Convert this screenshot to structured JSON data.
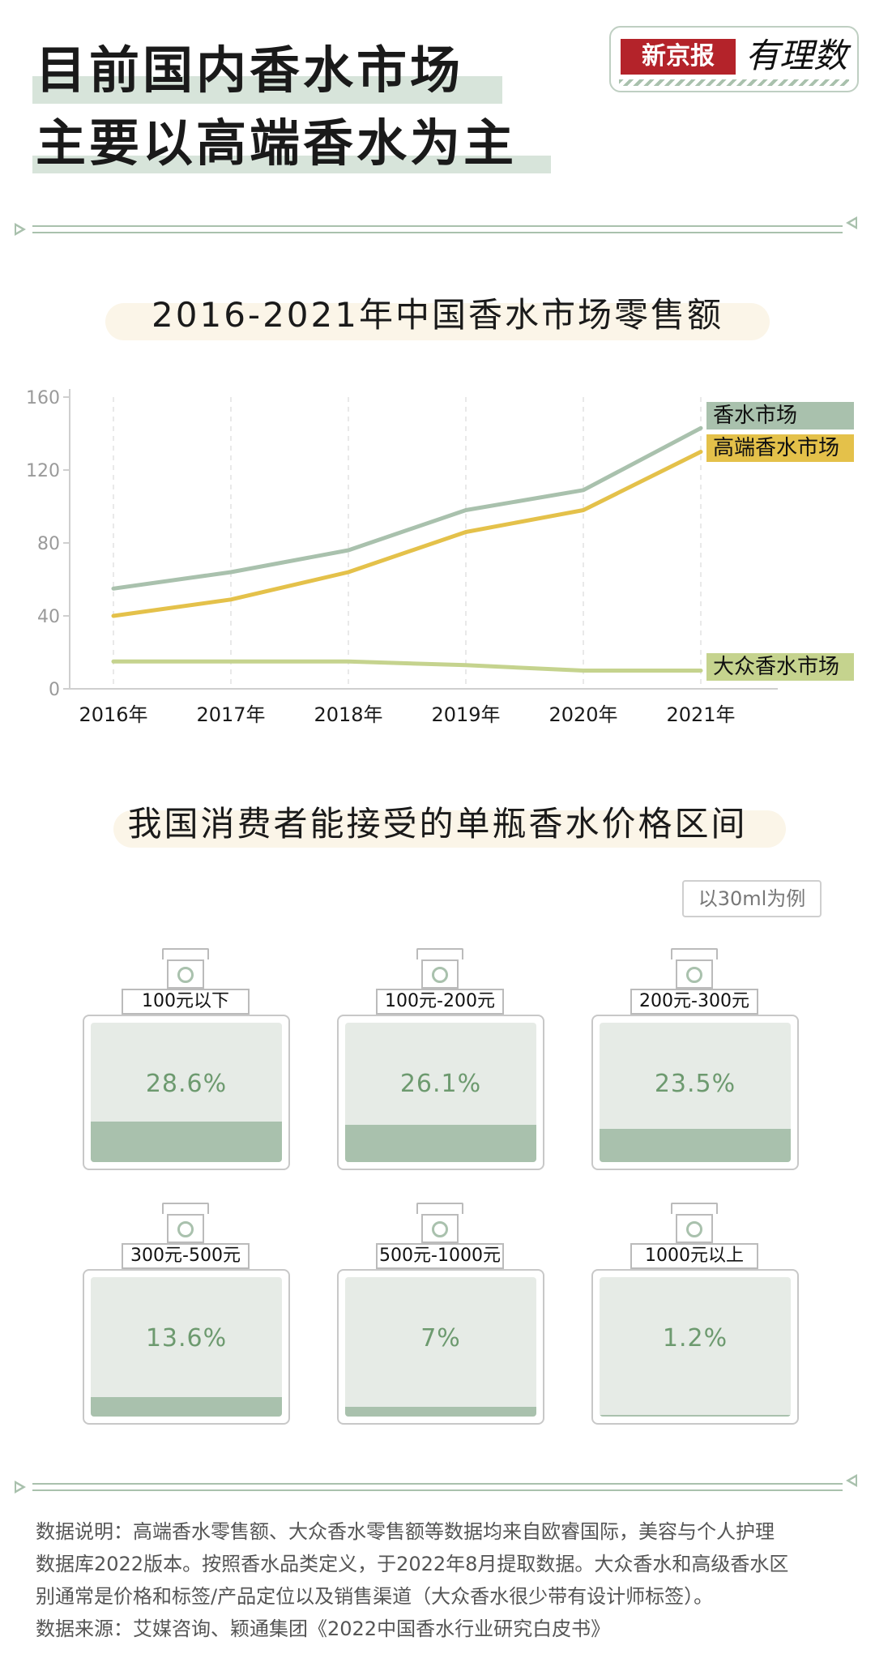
{
  "title": {
    "line1": "目前国内香水市场",
    "line2": "主要以高端香水为主"
  },
  "logo": {
    "brand": "新京报",
    "script": "有理数"
  },
  "chart_section": {
    "title": "2016-2021年中国香水市场零售额"
  },
  "chart_data": {
    "type": "line",
    "title": "2016-2021年中国香水市场零售额",
    "x": [
      "2016年",
      "2017年",
      "2018年",
      "2019年",
      "2020年",
      "2021年"
    ],
    "ylim": [
      0,
      160
    ],
    "yticks": [
      "0",
      "40",
      "80",
      "120",
      "160"
    ],
    "grid": "vertical dashed",
    "series": [
      {
        "name": "香水市场",
        "color": "#a9c1ad",
        "values": [
          55,
          64,
          76,
          98,
          109,
          143
        ]
      },
      {
        "name": "高端香水市场",
        "color": "#e4c14a",
        "values": [
          40,
          49,
          64,
          86,
          98,
          130
        ]
      },
      {
        "name": "大众香水市场",
        "color": "#c5d38e",
        "values": [
          15,
          15,
          15,
          13,
          10,
          10
        ]
      }
    ]
  },
  "price_section": {
    "title": "我国消费者能接受的单瓶香水价格区间",
    "note": "以30ml为例",
    "bottles": [
      {
        "range": "100元以下",
        "percent": "28.6%",
        "fill": 0.286
      },
      {
        "range": "100元-200元",
        "percent": "26.1%",
        "fill": 0.261
      },
      {
        "range": "200元-300元",
        "percent": "23.5%",
        "fill": 0.235
      },
      {
        "range": "300元-500元",
        "percent": "13.6%",
        "fill": 0.136
      },
      {
        "range": "500元-1000元",
        "percent": "7%",
        "fill": 0.07
      },
      {
        "range": "1000元以上",
        "percent": "1.2%",
        "fill": 0.012
      }
    ]
  },
  "footer": {
    "line1": "数据说明：高端香水零售额、大众香水零售额等数据均来自欧睿国际，美容与个人护理",
    "line2": "数据库2022版本。按照香水品类定义，于2022年8月提取数据。大众香水和高级香水区",
    "line3": "别通常是价格和标签/产品定位以及销售渠道（大众香水很少带有设计师标签）。",
    "line4": "数据来源：艾媒咨询、颖通集团《2022中国香水行业研究白皮书》"
  }
}
